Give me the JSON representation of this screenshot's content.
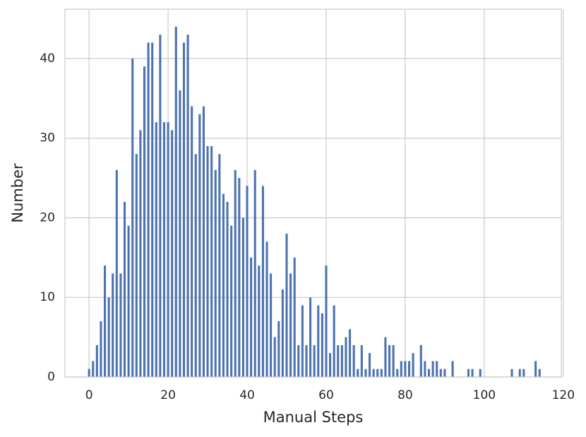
{
  "chart_data": {
    "type": "bar",
    "xlabel": "Manual Steps",
    "ylabel": "Number",
    "x": [
      0,
      1,
      2,
      3,
      4,
      5,
      6,
      7,
      8,
      9,
      10,
      11,
      12,
      13,
      14,
      15,
      16,
      17,
      18,
      19,
      20,
      21,
      22,
      23,
      24,
      25,
      26,
      27,
      28,
      29,
      30,
      31,
      32,
      33,
      34,
      35,
      36,
      37,
      38,
      39,
      40,
      41,
      42,
      43,
      44,
      45,
      46,
      47,
      48,
      49,
      50,
      51,
      52,
      53,
      54,
      55,
      56,
      57,
      58,
      59,
      60,
      61,
      62,
      63,
      64,
      65,
      66,
      67,
      68,
      69,
      70,
      71,
      72,
      73,
      74,
      75,
      76,
      77,
      78,
      79,
      80,
      81,
      82,
      84,
      85,
      86,
      87,
      88,
      89,
      90,
      92,
      96,
      97,
      99,
      107,
      109,
      110,
      113,
      114
    ],
    "values": [
      1,
      2,
      4,
      7,
      14,
      10,
      13,
      26,
      13,
      22,
      19,
      40,
      28,
      31,
      39,
      42,
      42,
      32,
      43,
      32,
      32,
      31,
      44,
      36,
      42,
      43,
      34,
      28,
      33,
      34,
      29,
      29,
      26,
      28,
      23,
      22,
      19,
      26,
      25,
      20,
      24,
      15,
      26,
      14,
      24,
      17,
      13,
      5,
      7,
      11,
      18,
      13,
      15,
      4,
      9,
      4,
      10,
      4,
      9,
      8,
      14,
      3,
      9,
      4,
      4,
      5,
      6,
      4,
      1,
      4,
      1,
      3,
      1,
      1,
      1,
      5,
      4,
      4,
      1,
      2,
      2,
      2,
      3,
      4,
      2,
      1,
      2,
      2,
      1,
      1,
      2,
      1,
      1,
      1,
      1,
      1,
      1,
      2,
      1
    ],
    "color": "#4c72b0",
    "xlim": [
      -6.1,
      119.5
    ],
    "ylim": [
      0,
      46.2
    ],
    "xticks": [
      0,
      20,
      40,
      60,
      80,
      100,
      120
    ],
    "yticks": [
      0,
      10,
      20,
      30,
      40
    ],
    "grid": true
  }
}
